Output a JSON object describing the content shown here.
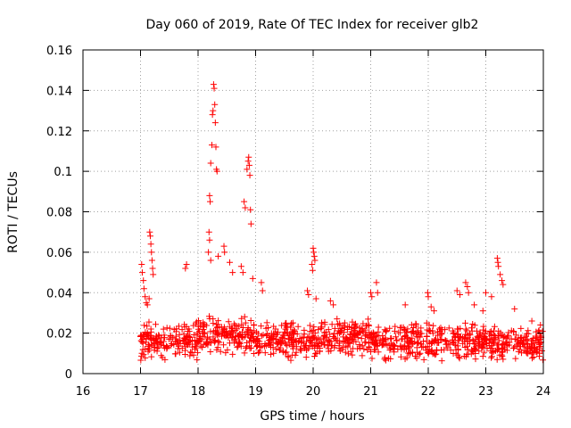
{
  "chart_data": {
    "type": "scatter",
    "title": "Day 060 of 2019, Rate Of TEC Index for receiver glb2",
    "xlabel": "GPS time / hours",
    "ylabel": "ROTI / TECUs",
    "xlim": [
      16,
      24
    ],
    "ylim": [
      0,
      0.16
    ],
    "x_ticks": [
      16,
      17,
      18,
      19,
      20,
      21,
      22,
      23,
      24
    ],
    "x_tick_labels": [
      "16",
      "17",
      "18",
      "19",
      "20",
      "21",
      "22",
      "23",
      "24"
    ],
    "y_ticks": [
      0,
      0.02,
      0.04,
      0.06,
      0.08,
      0.1,
      0.12,
      0.14,
      0.16
    ],
    "y_tick_labels": [
      "0",
      "0.02",
      "0.04",
      "0.06",
      "0.08",
      "0.1",
      "0.12",
      "0.14",
      "0.16"
    ],
    "grid": true,
    "marker": "+",
    "color": "#ff0000",
    "series": [
      {
        "name": "glb2 ROTI",
        "bands": [
          {
            "x": [
              17.0,
              18.0
            ],
            "low": 0.006,
            "high": 0.026
          },
          {
            "x": [
              18.0,
              19.0
            ],
            "low": 0.008,
            "high": 0.03
          },
          {
            "x": [
              19.0,
              20.0
            ],
            "low": 0.006,
            "high": 0.026
          },
          {
            "x": [
              20.0,
              21.0
            ],
            "low": 0.008,
            "high": 0.028
          },
          {
            "x": [
              21.0,
              22.0
            ],
            "low": 0.006,
            "high": 0.026
          },
          {
            "x": [
              22.0,
              23.0
            ],
            "low": 0.006,
            "high": 0.026
          },
          {
            "x": [
              23.0,
              24.0
            ],
            "low": 0.006,
            "high": 0.024
          }
        ],
        "points": [
          [
            17.02,
            0.054
          ],
          [
            17.03,
            0.05
          ],
          [
            17.05,
            0.046
          ],
          [
            17.06,
            0.042
          ],
          [
            17.08,
            0.038
          ],
          [
            17.1,
            0.035
          ],
          [
            17.12,
            0.034
          ],
          [
            17.15,
            0.037
          ],
          [
            17.16,
            0.07
          ],
          [
            17.17,
            0.068
          ],
          [
            17.18,
            0.064
          ],
          [
            17.19,
            0.06
          ],
          [
            17.2,
            0.056
          ],
          [
            17.21,
            0.052
          ],
          [
            17.22,
            0.049
          ],
          [
            17.8,
            0.054
          ],
          [
            17.78,
            0.052
          ],
          [
            18.2,
            0.088
          ],
          [
            18.21,
            0.085
          ],
          [
            18.22,
            0.104
          ],
          [
            18.24,
            0.113
          ],
          [
            18.25,
            0.128
          ],
          [
            18.26,
            0.13
          ],
          [
            18.27,
            0.143
          ],
          [
            18.28,
            0.141
          ],
          [
            18.29,
            0.133
          ],
          [
            18.3,
            0.124
          ],
          [
            18.31,
            0.112
          ],
          [
            18.32,
            0.101
          ],
          [
            18.33,
            0.1
          ],
          [
            18.19,
            0.07
          ],
          [
            18.2,
            0.066
          ],
          [
            18.18,
            0.06
          ],
          [
            18.22,
            0.056
          ],
          [
            18.35,
            0.058
          ],
          [
            18.45,
            0.063
          ],
          [
            18.46,
            0.06
          ],
          [
            18.55,
            0.055
          ],
          [
            18.6,
            0.05
          ],
          [
            18.8,
            0.085
          ],
          [
            18.82,
            0.082
          ],
          [
            18.85,
            0.101
          ],
          [
            18.87,
            0.105
          ],
          [
            18.88,
            0.107
          ],
          [
            18.89,
            0.103
          ],
          [
            18.9,
            0.098
          ],
          [
            18.91,
            0.081
          ],
          [
            18.92,
            0.074
          ],
          [
            18.75,
            0.053
          ],
          [
            18.78,
            0.05
          ],
          [
            18.95,
            0.047
          ],
          [
            19.1,
            0.045
          ],
          [
            19.12,
            0.041
          ],
          [
            19.9,
            0.041
          ],
          [
            19.92,
            0.039
          ],
          [
            20.0,
            0.062
          ],
          [
            20.01,
            0.06
          ],
          [
            20.02,
            0.058
          ],
          [
            20.03,
            0.056
          ],
          [
            19.98,
            0.054
          ],
          [
            19.99,
            0.051
          ],
          [
            20.05,
            0.037
          ],
          [
            20.3,
            0.036
          ],
          [
            20.35,
            0.034
          ],
          [
            21.0,
            0.04
          ],
          [
            21.02,
            0.038
          ],
          [
            21.1,
            0.045
          ],
          [
            21.12,
            0.04
          ],
          [
            21.6,
            0.034
          ],
          [
            21.99,
            0.04
          ],
          [
            22.0,
            0.038
          ],
          [
            22.05,
            0.033
          ],
          [
            22.1,
            0.031
          ],
          [
            22.5,
            0.041
          ],
          [
            22.55,
            0.039
          ],
          [
            22.65,
            0.045
          ],
          [
            22.68,
            0.043
          ],
          [
            22.7,
            0.04
          ],
          [
            22.8,
            0.034
          ],
          [
            22.95,
            0.031
          ],
          [
            23.0,
            0.04
          ],
          [
            23.2,
            0.057
          ],
          [
            23.21,
            0.055
          ],
          [
            23.22,
            0.053
          ],
          [
            23.25,
            0.049
          ],
          [
            23.28,
            0.046
          ],
          [
            23.3,
            0.044
          ],
          [
            23.1,
            0.038
          ],
          [
            23.5,
            0.032
          ],
          [
            23.8,
            0.026
          ],
          [
            23.95,
            0.024
          ]
        ]
      }
    ]
  }
}
